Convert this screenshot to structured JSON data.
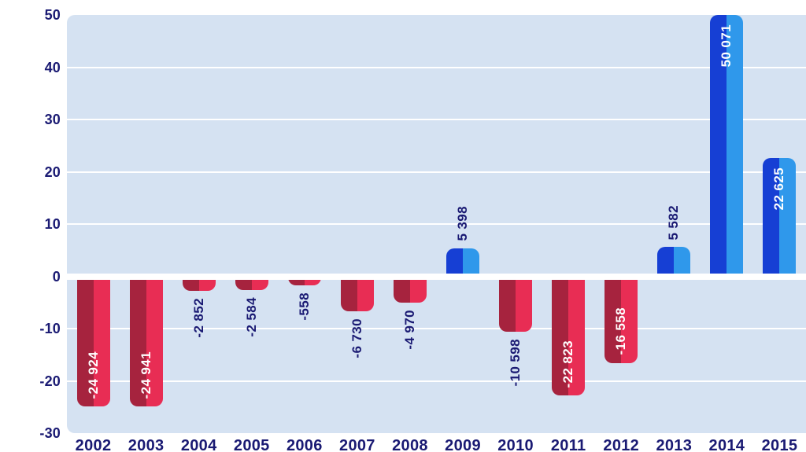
{
  "chart_data": {
    "type": "bar",
    "title": "",
    "xlabel": "",
    "ylabel": "",
    "categories": [
      "2002",
      "2003",
      "2004",
      "2005",
      "2006",
      "2007",
      "2008",
      "2009",
      "2010",
      "2011",
      "2012",
      "2013",
      "2014",
      "2015"
    ],
    "values": [
      -24924,
      -24941,
      -2852,
      -2584,
      -558,
      -6730,
      -4970,
      5398,
      -10598,
      -22823,
      -16558,
      5582,
      50071,
      22625
    ],
    "value_labels": [
      "-24 924",
      "-24 941",
      "-2 852",
      "-2 584",
      "-558",
      "-6 730",
      "-4 970",
      "5 398",
      "-10 598",
      "-22 823",
      "-16 558",
      "5 582",
      "50 071",
      "22 625"
    ],
    "label_placement": [
      "inside",
      "inside",
      "outside",
      "outside",
      "outside",
      "outside",
      "outside",
      "outside",
      "outside",
      "inside",
      "inside",
      "outside",
      "inside",
      "inside"
    ],
    "label_orientation": "vertical-bottom-to-top",
    "ylim": [
      -30,
      50
    ],
    "y_ticks": [
      50,
      40,
      30,
      20,
      10,
      0,
      -10,
      -20,
      -30
    ],
    "y_tick_labels": [
      "50",
      "40",
      "30",
      "20",
      "10",
      "0",
      "-10",
      "-20",
      "-30"
    ],
    "y_axis_values_divisor": 1000,
    "grid": "horizontal",
    "legend": "none",
    "colors": {
      "bar_negative_dark": "#a6233e",
      "bar_negative_light": "#e82d54",
      "bar_positive_dark": "#163fd4",
      "bar_positive_light": "#2f98eb",
      "plot_background": "#d5e2f2",
      "gridline": "#ffffff",
      "zero_line": "#ffffff",
      "axis_text": "#1a1a73",
      "bar_label_inside": "#ffffff",
      "bar_label_outside": "#1a1a73",
      "page_background": "#ffffff"
    }
  }
}
